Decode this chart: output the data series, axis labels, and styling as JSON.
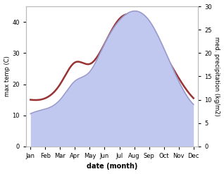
{
  "months": [
    "Jan",
    "Feb",
    "Mar",
    "Apr",
    "May",
    "Jun",
    "Jul",
    "Aug",
    "Sep",
    "Oct",
    "Nov",
    "Dec"
  ],
  "max_temp": [
    15.0,
    15.5,
    20.0,
    27.0,
    26.5,
    33.0,
    41.0,
    42.0,
    37.0,
    30.0,
    22.0,
    15.5
  ],
  "precipitation": [
    7.0,
    8.0,
    10.0,
    14.0,
    16.0,
    22.0,
    27.0,
    29.0,
    27.0,
    21.0,
    14.0,
    9.0
  ],
  "temp_color": "#993333",
  "precip_line_color": "#9999cc",
  "precip_fill_color": "#c0c8f0",
  "ylabel_left": "max temp (C)",
  "ylabel_right": "med. precipitation (kg/m2)",
  "xlabel": "date (month)",
  "ylim_left": [
    0,
    45
  ],
  "ylim_right": [
    0,
    30
  ],
  "yticks_left": [
    0,
    10,
    20,
    30,
    40
  ],
  "yticks_right": [
    0,
    5,
    10,
    15,
    20,
    25,
    30
  ],
  "background_color": "#ffffff"
}
